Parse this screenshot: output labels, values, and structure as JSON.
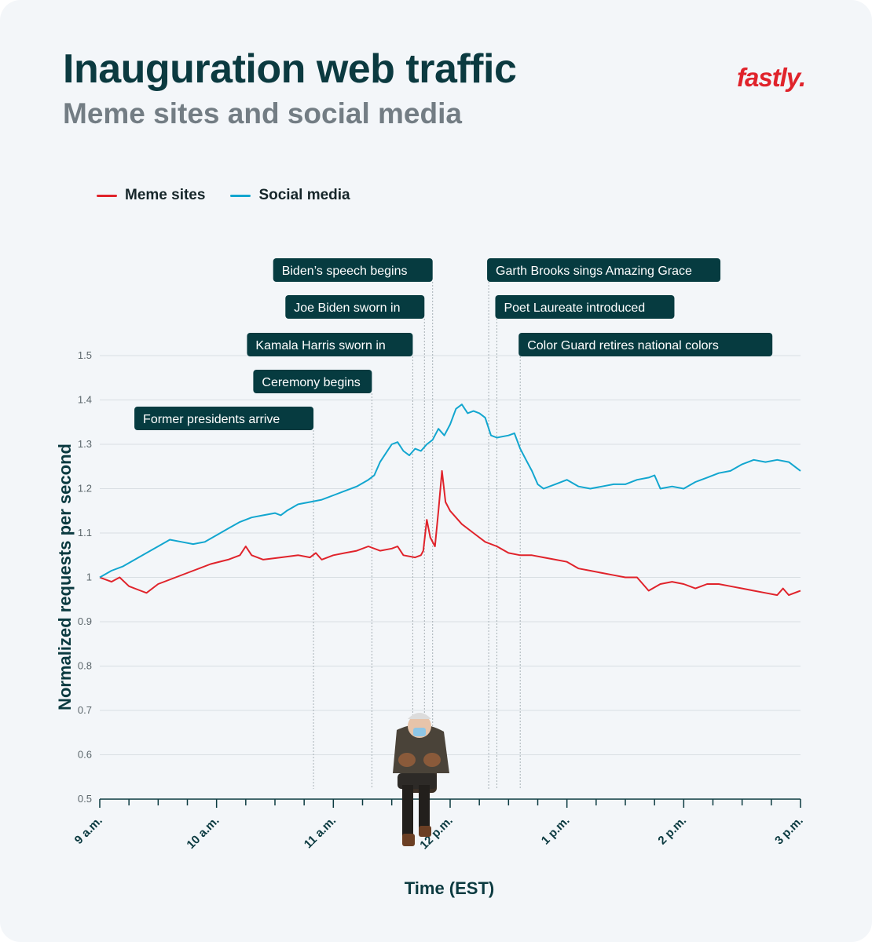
{
  "header": {
    "title": "Inauguration web traffic",
    "subtitle": "Meme sites and social media",
    "brand": "fastly."
  },
  "colors": {
    "meme": "#e0232b",
    "social": "#12a6cf",
    "annotation_bg": "#063b40",
    "title": "#0b3a40"
  },
  "legend": [
    {
      "label": "Meme sites",
      "color": "#e0232b"
    },
    {
      "label": "Social media",
      "color": "#12a6cf"
    }
  ],
  "chart_data": {
    "type": "line",
    "title": "Inauguration web traffic",
    "subtitle": "Meme sites and social media",
    "xlabel": "Time (EST)",
    "ylabel": "Normalized requests per second",
    "xlim": [
      9,
      15
    ],
    "ylim": [
      0.5,
      1.5
    ],
    "yticks": [
      0.5,
      0.6,
      0.7,
      0.8,
      0.9,
      1,
      1.1,
      1.2,
      1.3,
      1.4,
      1.5
    ],
    "xticks": [
      {
        "x": 9,
        "label": "9 a.m."
      },
      {
        "x": 10,
        "label": "10 a.m."
      },
      {
        "x": 11,
        "label": "11 a.m."
      },
      {
        "x": 12,
        "label": "12 p.m."
      },
      {
        "x": 13,
        "label": "1 p.m."
      },
      {
        "x": 14,
        "label": "2 p.m."
      },
      {
        "x": 15,
        "label": "3 p.m."
      }
    ],
    "grid": true,
    "legend_position": "top-left",
    "series": [
      {
        "name": "Meme sites",
        "color": "#e0232b",
        "points": [
          [
            9.0,
            1.0
          ],
          [
            9.1,
            0.99
          ],
          [
            9.17,
            1.0
          ],
          [
            9.25,
            0.98
          ],
          [
            9.35,
            0.97
          ],
          [
            9.4,
            0.965
          ],
          [
            9.5,
            0.985
          ],
          [
            9.65,
            1.0
          ],
          [
            9.8,
            1.015
          ],
          [
            9.95,
            1.03
          ],
          [
            10.1,
            1.04
          ],
          [
            10.2,
            1.05
          ],
          [
            10.25,
            1.07
          ],
          [
            10.3,
            1.05
          ],
          [
            10.4,
            1.04
          ],
          [
            10.55,
            1.045
          ],
          [
            10.7,
            1.05
          ],
          [
            10.8,
            1.045
          ],
          [
            10.85,
            1.055
          ],
          [
            10.9,
            1.04
          ],
          [
            11.0,
            1.05
          ],
          [
            11.1,
            1.055
          ],
          [
            11.2,
            1.06
          ],
          [
            11.3,
            1.07
          ],
          [
            11.4,
            1.06
          ],
          [
            11.5,
            1.065
          ],
          [
            11.55,
            1.07
          ],
          [
            11.6,
            1.05
          ],
          [
            11.7,
            1.045
          ],
          [
            11.75,
            1.05
          ],
          [
            11.77,
            1.06
          ],
          [
            11.8,
            1.13
          ],
          [
            11.83,
            1.09
          ],
          [
            11.87,
            1.07
          ],
          [
            11.9,
            1.15
          ],
          [
            11.93,
            1.24
          ],
          [
            11.96,
            1.17
          ],
          [
            12.0,
            1.15
          ],
          [
            12.1,
            1.12
          ],
          [
            12.2,
            1.1
          ],
          [
            12.3,
            1.08
          ],
          [
            12.4,
            1.07
          ],
          [
            12.5,
            1.055
          ],
          [
            12.6,
            1.05
          ],
          [
            12.7,
            1.05
          ],
          [
            12.8,
            1.045
          ],
          [
            12.9,
            1.04
          ],
          [
            13.0,
            1.035
          ],
          [
            13.1,
            1.02
          ],
          [
            13.2,
            1.015
          ],
          [
            13.3,
            1.01
          ],
          [
            13.4,
            1.005
          ],
          [
            13.5,
            1.0
          ],
          [
            13.6,
            1.0
          ],
          [
            13.65,
            0.985
          ],
          [
            13.7,
            0.97
          ],
          [
            13.8,
            0.985
          ],
          [
            13.9,
            0.99
          ],
          [
            14.0,
            0.985
          ],
          [
            14.1,
            0.975
          ],
          [
            14.2,
            0.985
          ],
          [
            14.3,
            0.985
          ],
          [
            14.4,
            0.98
          ],
          [
            14.5,
            0.975
          ],
          [
            14.6,
            0.97
          ],
          [
            14.7,
            0.965
          ],
          [
            14.8,
            0.96
          ],
          [
            14.85,
            0.975
          ],
          [
            14.9,
            0.96
          ],
          [
            15.0,
            0.97
          ]
        ]
      },
      {
        "name": "Social media",
        "color": "#12a6cf",
        "points": [
          [
            9.0,
            1.0
          ],
          [
            9.1,
            1.015
          ],
          [
            9.2,
            1.025
          ],
          [
            9.3,
            1.04
          ],
          [
            9.4,
            1.055
          ],
          [
            9.5,
            1.07
          ],
          [
            9.6,
            1.085
          ],
          [
            9.7,
            1.08
          ],
          [
            9.8,
            1.075
          ],
          [
            9.9,
            1.08
          ],
          [
            10.0,
            1.095
          ],
          [
            10.1,
            1.11
          ],
          [
            10.2,
            1.125
          ],
          [
            10.3,
            1.135
          ],
          [
            10.4,
            1.14
          ],
          [
            10.5,
            1.145
          ],
          [
            10.55,
            1.14
          ],
          [
            10.6,
            1.15
          ],
          [
            10.7,
            1.165
          ],
          [
            10.8,
            1.17
          ],
          [
            10.9,
            1.175
          ],
          [
            11.0,
            1.185
          ],
          [
            11.1,
            1.195
          ],
          [
            11.2,
            1.205
          ],
          [
            11.3,
            1.22
          ],
          [
            11.35,
            1.23
          ],
          [
            11.4,
            1.26
          ],
          [
            11.45,
            1.28
          ],
          [
            11.5,
            1.3
          ],
          [
            11.55,
            1.305
          ],
          [
            11.6,
            1.285
          ],
          [
            11.65,
            1.275
          ],
          [
            11.7,
            1.29
          ],
          [
            11.75,
            1.285
          ],
          [
            11.8,
            1.3
          ],
          [
            11.85,
            1.31
          ],
          [
            11.9,
            1.335
          ],
          [
            11.95,
            1.32
          ],
          [
            12.0,
            1.345
          ],
          [
            12.05,
            1.38
          ],
          [
            12.1,
            1.39
          ],
          [
            12.15,
            1.37
          ],
          [
            12.2,
            1.375
          ],
          [
            12.25,
            1.37
          ],
          [
            12.3,
            1.36
          ],
          [
            12.35,
            1.32
          ],
          [
            12.4,
            1.315
          ],
          [
            12.5,
            1.32
          ],
          [
            12.55,
            1.325
          ],
          [
            12.6,
            1.29
          ],
          [
            12.65,
            1.265
          ],
          [
            12.7,
            1.24
          ],
          [
            12.75,
            1.21
          ],
          [
            12.8,
            1.2
          ],
          [
            12.9,
            1.21
          ],
          [
            13.0,
            1.22
          ],
          [
            13.1,
            1.205
          ],
          [
            13.2,
            1.2
          ],
          [
            13.3,
            1.205
          ],
          [
            13.4,
            1.21
          ],
          [
            13.5,
            1.21
          ],
          [
            13.6,
            1.22
          ],
          [
            13.7,
            1.225
          ],
          [
            13.75,
            1.23
          ],
          [
            13.8,
            1.2
          ],
          [
            13.9,
            1.205
          ],
          [
            14.0,
            1.2
          ],
          [
            14.1,
            1.215
          ],
          [
            14.2,
            1.225
          ],
          [
            14.3,
            1.235
          ],
          [
            14.4,
            1.24
          ],
          [
            14.5,
            1.255
          ],
          [
            14.6,
            1.265
          ],
          [
            14.7,
            1.26
          ],
          [
            14.8,
            1.265
          ],
          [
            14.9,
            1.26
          ],
          [
            14.95,
            1.25
          ],
          [
            15.0,
            1.24
          ]
        ]
      }
    ],
    "annotations": [
      {
        "label": "Former presidents arrive",
        "x": 10.83
      },
      {
        "label": "Ceremony begins",
        "x": 11.33
      },
      {
        "label": "Kamala Harris sworn in",
        "x": 11.68
      },
      {
        "label": "Joe Biden sworn in",
        "x": 11.78
      },
      {
        "label": "Biden’s speech begins",
        "x": 11.85
      },
      {
        "label": "Garth Brooks sings Amazing Grace",
        "x": 12.33
      },
      {
        "label": "Poet Laureate introduced",
        "x": 12.4
      },
      {
        "label": "Color Guard retires national colors",
        "x": 12.6
      }
    ]
  }
}
